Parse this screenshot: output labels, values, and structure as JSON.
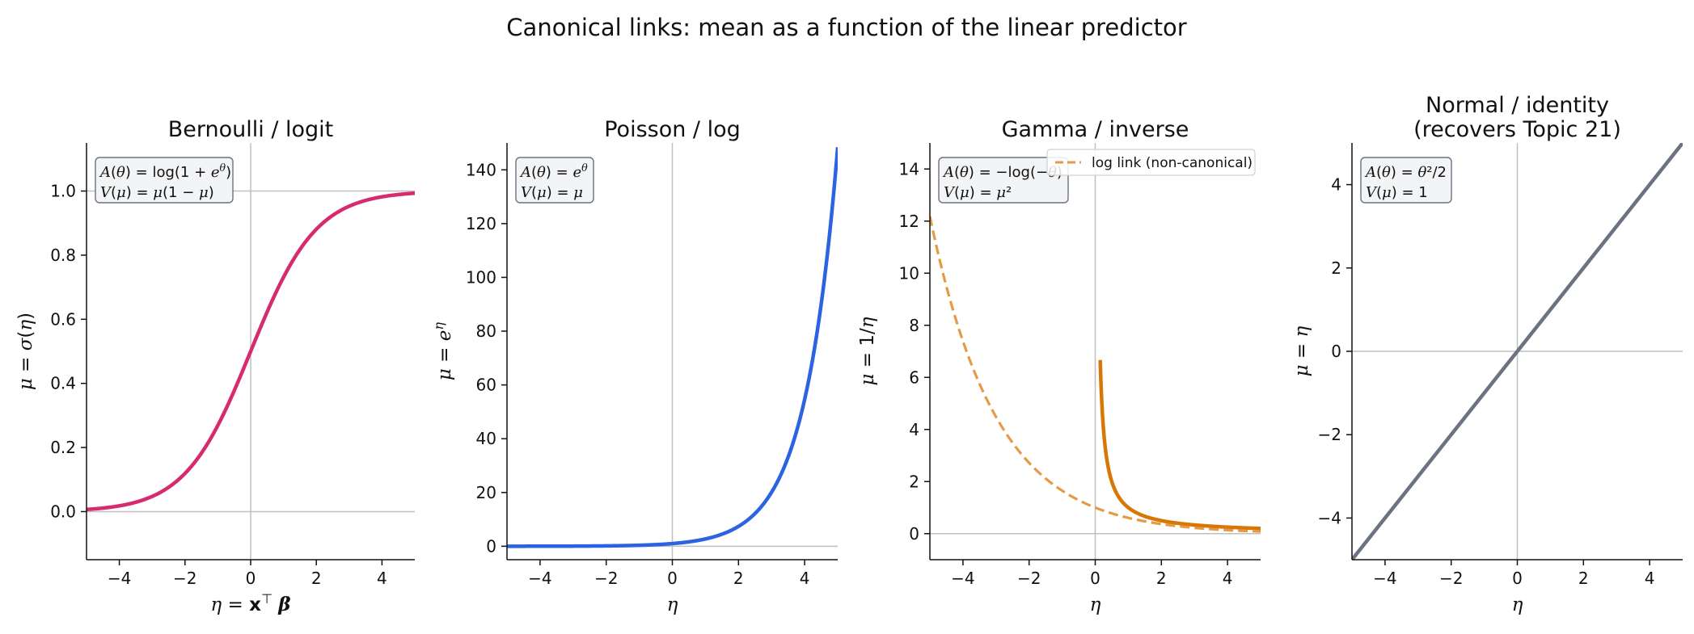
{
  "figure": {
    "suptitle": "Canonical links: mean as a function of the linear predictor"
  },
  "chart_data": [
    {
      "type": "line",
      "title": "Bernoulli / logit",
      "title_line2": "",
      "xlabel": "η = x⊤β",
      "ylabel": "μ = σ(η)",
      "xlim": [
        -5,
        5
      ],
      "ylim": [
        -0.15,
        1.15
      ],
      "xticks": [
        "−4",
        "−2",
        "0",
        "2",
        "4"
      ],
      "xtick_values": [
        -4,
        -2,
        0,
        2,
        4
      ],
      "yticks": [
        "0.0",
        "0.2",
        "0.4",
        "0.6",
        "0.8",
        "1.0"
      ],
      "ytick_values": [
        0,
        0.2,
        0.4,
        0.6,
        0.8,
        1.0
      ],
      "reference_lines": {
        "horizontal": [
          0,
          1
        ],
        "vertical": [
          0
        ]
      },
      "annotation": [
        "A(θ) = log(1 + e^θ)",
        "V(μ) = μ(1 − μ)"
      ],
      "grid": false,
      "series": [
        {
          "function": "sigmoid",
          "x_range": [
            -5,
            5
          ],
          "color": "#d62c6f",
          "style": "solid",
          "sample_points": [
            [
              -4,
              0.018
            ],
            [
              -2,
              0.119
            ],
            [
              0,
              0.5
            ],
            [
              2,
              0.881
            ],
            [
              4,
              0.982
            ]
          ]
        }
      ]
    },
    {
      "type": "line",
      "title": "Poisson / log",
      "title_line2": "",
      "xlabel": "η",
      "ylabel": "μ = e^η",
      "xlim": [
        -5,
        5
      ],
      "ylim": [
        -5,
        150
      ],
      "xticks": [
        "−4",
        "−2",
        "0",
        "2",
        "4"
      ],
      "xtick_values": [
        -4,
        -2,
        0,
        2,
        4
      ],
      "yticks": [
        "0",
        "20",
        "40",
        "60",
        "80",
        "100",
        "120",
        "140"
      ],
      "ytick_values": [
        0,
        20,
        40,
        60,
        80,
        100,
        120,
        140
      ],
      "reference_lines": {
        "horizontal": [
          0
        ],
        "vertical": [
          0
        ]
      },
      "annotation": [
        "A(θ) = e^θ",
        "V(μ) = μ"
      ],
      "grid": false,
      "series": [
        {
          "function": "exp",
          "x_range": [
            -5,
            5
          ],
          "color": "#2b63e0",
          "style": "solid",
          "sample_points": [
            [
              0,
              1
            ],
            [
              2,
              7.39
            ],
            [
              4,
              54.6
            ],
            [
              5,
              148.4
            ]
          ]
        }
      ]
    },
    {
      "type": "line",
      "title": "Gamma / inverse",
      "title_line2": "",
      "xlabel": "η",
      "ylabel": "μ = 1/η",
      "xlim": [
        -5,
        5
      ],
      "ylim": [
        -1,
        15
      ],
      "xticks": [
        "−4",
        "−2",
        "0",
        "2",
        "4"
      ],
      "xtick_values": [
        -4,
        -2,
        0,
        2,
        4
      ],
      "yticks": [
        "0",
        "2",
        "4",
        "6",
        "8",
        "10",
        "12",
        "14"
      ],
      "ytick_values": [
        0,
        2,
        4,
        6,
        8,
        10,
        12,
        14
      ],
      "reference_lines": {
        "horizontal": [
          0
        ],
        "vertical": [
          0
        ]
      },
      "annotation": [
        "A(θ) = −log(−θ)",
        "V(μ) = μ²"
      ],
      "legend": {
        "entries": [
          "log link (non-canonical)"
        ],
        "placement": "upper right"
      },
      "grid": false,
      "series": [
        {
          "function": "inverse",
          "x_range": [
            0.15,
            5
          ],
          "color": "#d97706",
          "style": "solid",
          "sample_points": [
            [
              0.15,
              6.67
            ],
            [
              0.5,
              2.0
            ],
            [
              1,
              1.0
            ],
            [
              2,
              0.5
            ],
            [
              5,
              0.2
            ]
          ]
        },
        {
          "name": "log link (non-canonical)",
          "function": "exp_neg_half",
          "x_range": [
            -5,
            5
          ],
          "color": "#e59a45",
          "style": "dashed",
          "sample_points": [
            [
              -5,
              12.18
            ],
            [
              -2,
              2.72
            ],
            [
              0,
              1.0
            ],
            [
              2,
              0.37
            ],
            [
              5,
              0.08
            ]
          ]
        }
      ]
    },
    {
      "type": "line",
      "title": "Normal / identity",
      "title_line2": "(recovers Topic 21)",
      "xlabel": "η",
      "ylabel": "μ = η",
      "xlim": [
        -5,
        5
      ],
      "ylim": [
        -5,
        5
      ],
      "xticks": [
        "−4",
        "−2",
        "0",
        "2",
        "4"
      ],
      "xtick_values": [
        -4,
        -2,
        0,
        2,
        4
      ],
      "yticks": [
        "−4",
        "−2",
        "0",
        "2",
        "4"
      ],
      "ytick_values": [
        -4,
        -2,
        0,
        2,
        4
      ],
      "reference_lines": {
        "horizontal": [
          0
        ],
        "vertical": [
          0
        ]
      },
      "annotation": [
        "A(θ) = θ²/2",
        "V(μ) = 1"
      ],
      "grid": false,
      "series": [
        {
          "function": "identity",
          "x_range": [
            -5,
            5
          ],
          "color": "#6b7280",
          "style": "solid",
          "sample_points": [
            [
              -5,
              -5
            ],
            [
              0,
              0
            ],
            [
              5,
              5
            ]
          ]
        }
      ]
    }
  ]
}
